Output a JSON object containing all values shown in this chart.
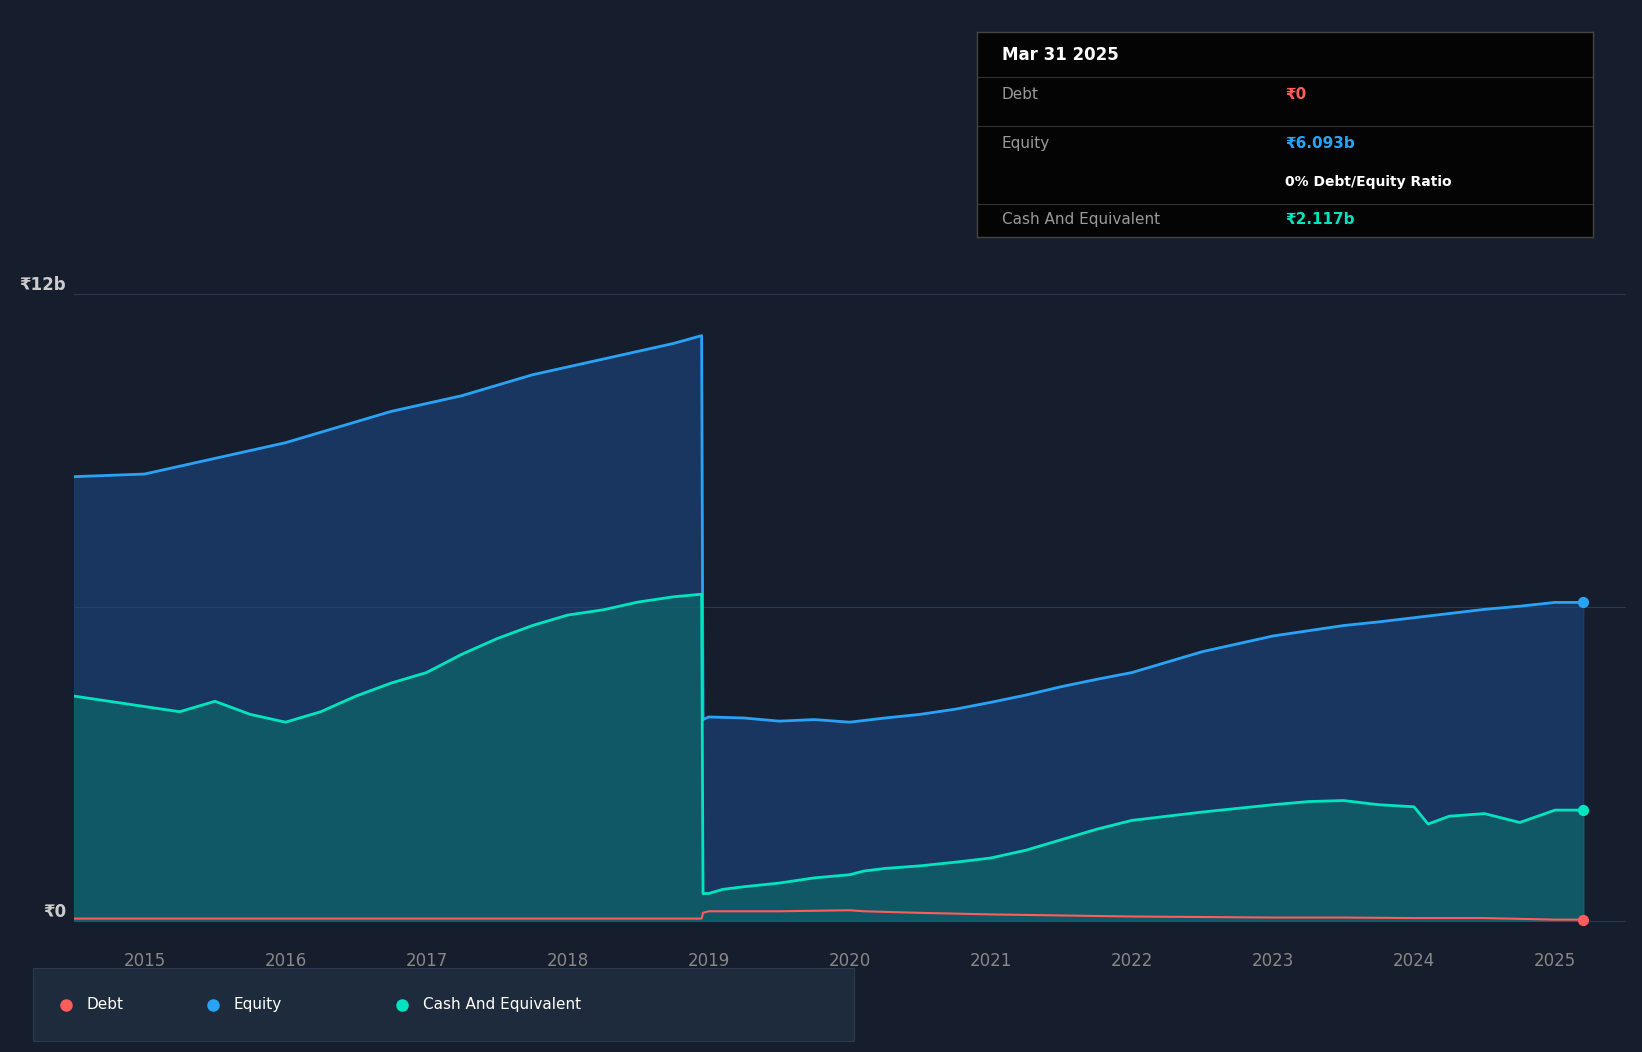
{
  "background_color": "#161e2d",
  "plot_bg_color": "#161e2d",
  "grid_color": "#2a3a50",
  "ylabel_12b": "₹12b",
  "ylabel_0": "₹0",
  "xlim": [
    2014.5,
    2025.5
  ],
  "ylim": [
    -500000000.0,
    14000000000.0
  ],
  "y12b_val": 12000000000,
  "y0_val": 0,
  "y6b_val": 6000000000,
  "tooltip": {
    "date": "Mar 31 2025",
    "debt_label": "Debt",
    "debt_value": "₹0",
    "equity_label": "Equity",
    "equity_value": "₹6.093b",
    "ratio_text": "0% Debt/Equity Ratio",
    "cash_label": "Cash And Equivalent",
    "cash_value": "₹2.117b"
  },
  "legend": {
    "debt": "Debt",
    "equity": "Equity",
    "cash": "Cash And Equivalent"
  },
  "colors": {
    "debt": "#ff5c5c",
    "equity": "#29a3f5",
    "cash": "#00e5c0",
    "equity_fill": "#1a4a8a",
    "cash_fill": "#0d6b6b"
  },
  "years_ticks": [
    2015,
    2016,
    2017,
    2018,
    2019,
    2020,
    2021,
    2022,
    2023,
    2024,
    2025
  ],
  "equity": {
    "x": [
      2014.5,
      2015.0,
      2015.25,
      2015.5,
      2015.75,
      2016.0,
      2016.25,
      2016.5,
      2016.75,
      2017.0,
      2017.25,
      2017.5,
      2017.75,
      2018.0,
      2018.25,
      2018.5,
      2018.75,
      2018.95,
      2018.96,
      2019.0,
      2019.25,
      2019.5,
      2019.75,
      2020.0,
      2020.25,
      2020.5,
      2020.75,
      2021.0,
      2021.25,
      2021.5,
      2021.75,
      2022.0,
      2022.25,
      2022.5,
      2022.75,
      2023.0,
      2023.25,
      2023.5,
      2023.75,
      2024.0,
      2024.25,
      2024.5,
      2024.75,
      2025.0,
      2025.2
    ],
    "y": [
      8500000000.0,
      8550000000.0,
      8700000000.0,
      8850000000.0,
      9000000000.0,
      9150000000.0,
      9350000000.0,
      9550000000.0,
      9750000000.0,
      9900000000.0,
      10050000000.0,
      10250000000.0,
      10450000000.0,
      10600000000.0,
      10750000000.0,
      10900000000.0,
      11050000000.0,
      11200000000.0,
      3850000000.0,
      3900000000.0,
      3880000000.0,
      3820000000.0,
      3850000000.0,
      3800000000.0,
      3880000000.0,
      3950000000.0,
      4050000000.0,
      4180000000.0,
      4320000000.0,
      4480000000.0,
      4620000000.0,
      4750000000.0,
      4950000000.0,
      5150000000.0,
      5300000000.0,
      5450000000.0,
      5550000000.0,
      5650000000.0,
      5720000000.0,
      5800000000.0,
      5880000000.0,
      5960000000.0,
      6020000000.0,
      6093000000.0,
      6093000000.0
    ]
  },
  "cash": {
    "x": [
      2014.5,
      2015.0,
      2015.25,
      2015.5,
      2015.75,
      2016.0,
      2016.25,
      2016.5,
      2016.75,
      2017.0,
      2017.25,
      2017.5,
      2017.75,
      2018.0,
      2018.25,
      2018.5,
      2018.75,
      2018.95,
      2018.96,
      2019.0,
      2019.1,
      2019.25,
      2019.5,
      2019.75,
      2020.0,
      2020.1,
      2020.25,
      2020.5,
      2020.75,
      2021.0,
      2021.25,
      2021.5,
      2021.75,
      2022.0,
      2022.25,
      2022.5,
      2022.75,
      2023.0,
      2023.25,
      2023.5,
      2023.75,
      2024.0,
      2024.1,
      2024.25,
      2024.5,
      2024.75,
      2025.0,
      2025.2
    ],
    "y": [
      4300000000.0,
      4100000000.0,
      4000000000.0,
      4200000000.0,
      3950000000.0,
      3800000000.0,
      4000000000.0,
      4300000000.0,
      4550000000.0,
      4750000000.0,
      5100000000.0,
      5400000000.0,
      5650000000.0,
      5850000000.0,
      5950000000.0,
      6100000000.0,
      6200000000.0,
      6250000000.0,
      520000000.0,
      520000000.0,
      600000000.0,
      650000000.0,
      720000000.0,
      820000000.0,
      880000000.0,
      950000000.0,
      1000000000.0,
      1050000000.0,
      1120000000.0,
      1200000000.0,
      1350000000.0,
      1550000000.0,
      1750000000.0,
      1920000000.0,
      2000000000.0,
      2080000000.0,
      2150000000.0,
      2220000000.0,
      2280000000.0,
      2300000000.0,
      2220000000.0,
      2180000000.0,
      1850000000.0,
      2000000000.0,
      2050000000.0,
      1880000000.0,
      2117000000.0,
      2117000000.0
    ]
  },
  "debt": {
    "x": [
      2014.5,
      2015.0,
      2015.5,
      2016.0,
      2016.5,
      2017.0,
      2017.5,
      2018.0,
      2018.5,
      2018.95,
      2018.96,
      2019.0,
      2019.5,
      2020.0,
      2020.1,
      2020.5,
      2021.0,
      2021.5,
      2022.0,
      2022.5,
      2023.0,
      2023.5,
      2024.0,
      2024.5,
      2025.0,
      2025.2
    ],
    "y": [
      40000000.0,
      40000000.0,
      40000000.0,
      40000000.0,
      40000000.0,
      40000000.0,
      40000000.0,
      40000000.0,
      40000000.0,
      40000000.0,
      150000000.0,
      180000000.0,
      180000000.0,
      200000000.0,
      180000000.0,
      150000000.0,
      120000000.0,
      100000000.0,
      80000000.0,
      70000000.0,
      60000000.0,
      60000000.0,
      50000000.0,
      50000000.0,
      20000000.0,
      20000000.0
    ]
  }
}
